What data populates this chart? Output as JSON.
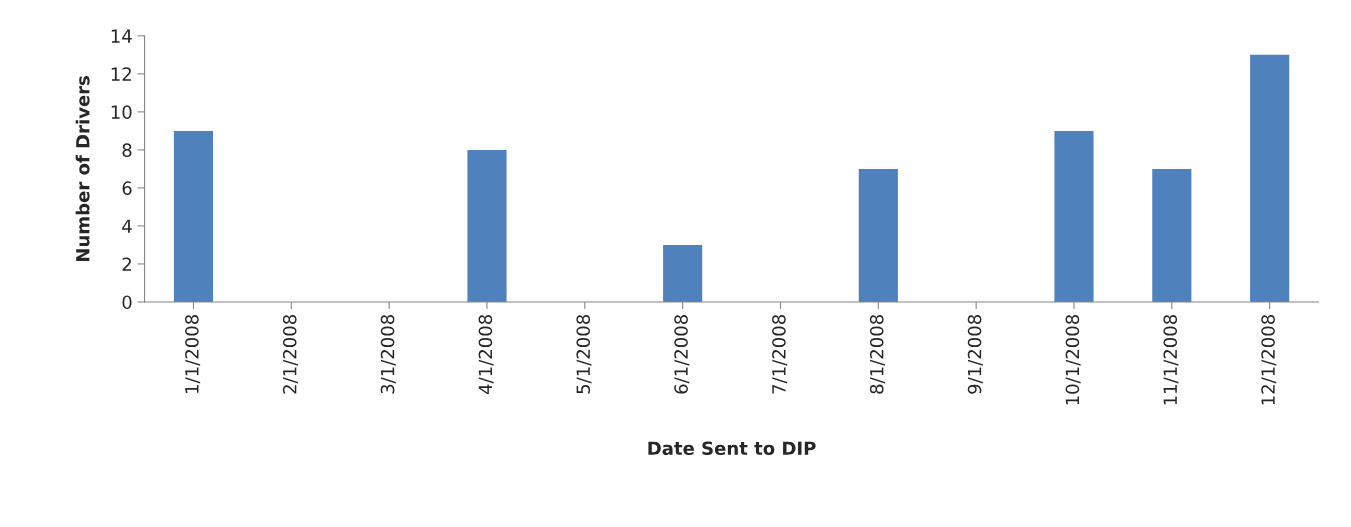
{
  "chart_data": {
    "type": "bar",
    "xlabel": "Date Sent to DIP",
    "ylabel": "Number of Drivers",
    "categories": [
      "1/1/2008",
      "2/1/2008",
      "3/1/2008",
      "4/1/2008",
      "5/1/2008",
      "6/1/2008",
      "7/1/2008",
      "8/1/2008",
      "9/1/2008",
      "10/1/2008",
      "11/1/2008",
      "12/1/2008"
    ],
    "values": [
      9,
      0,
      0,
      8,
      0,
      3,
      0,
      7,
      0,
      9,
      7,
      13
    ],
    "color": "#4f81bd",
    "ylim": [
      0,
      14
    ],
    "yticks": [
      0,
      2,
      4,
      6,
      8,
      10,
      12,
      14
    ],
    "grid": false,
    "legend": false
  }
}
